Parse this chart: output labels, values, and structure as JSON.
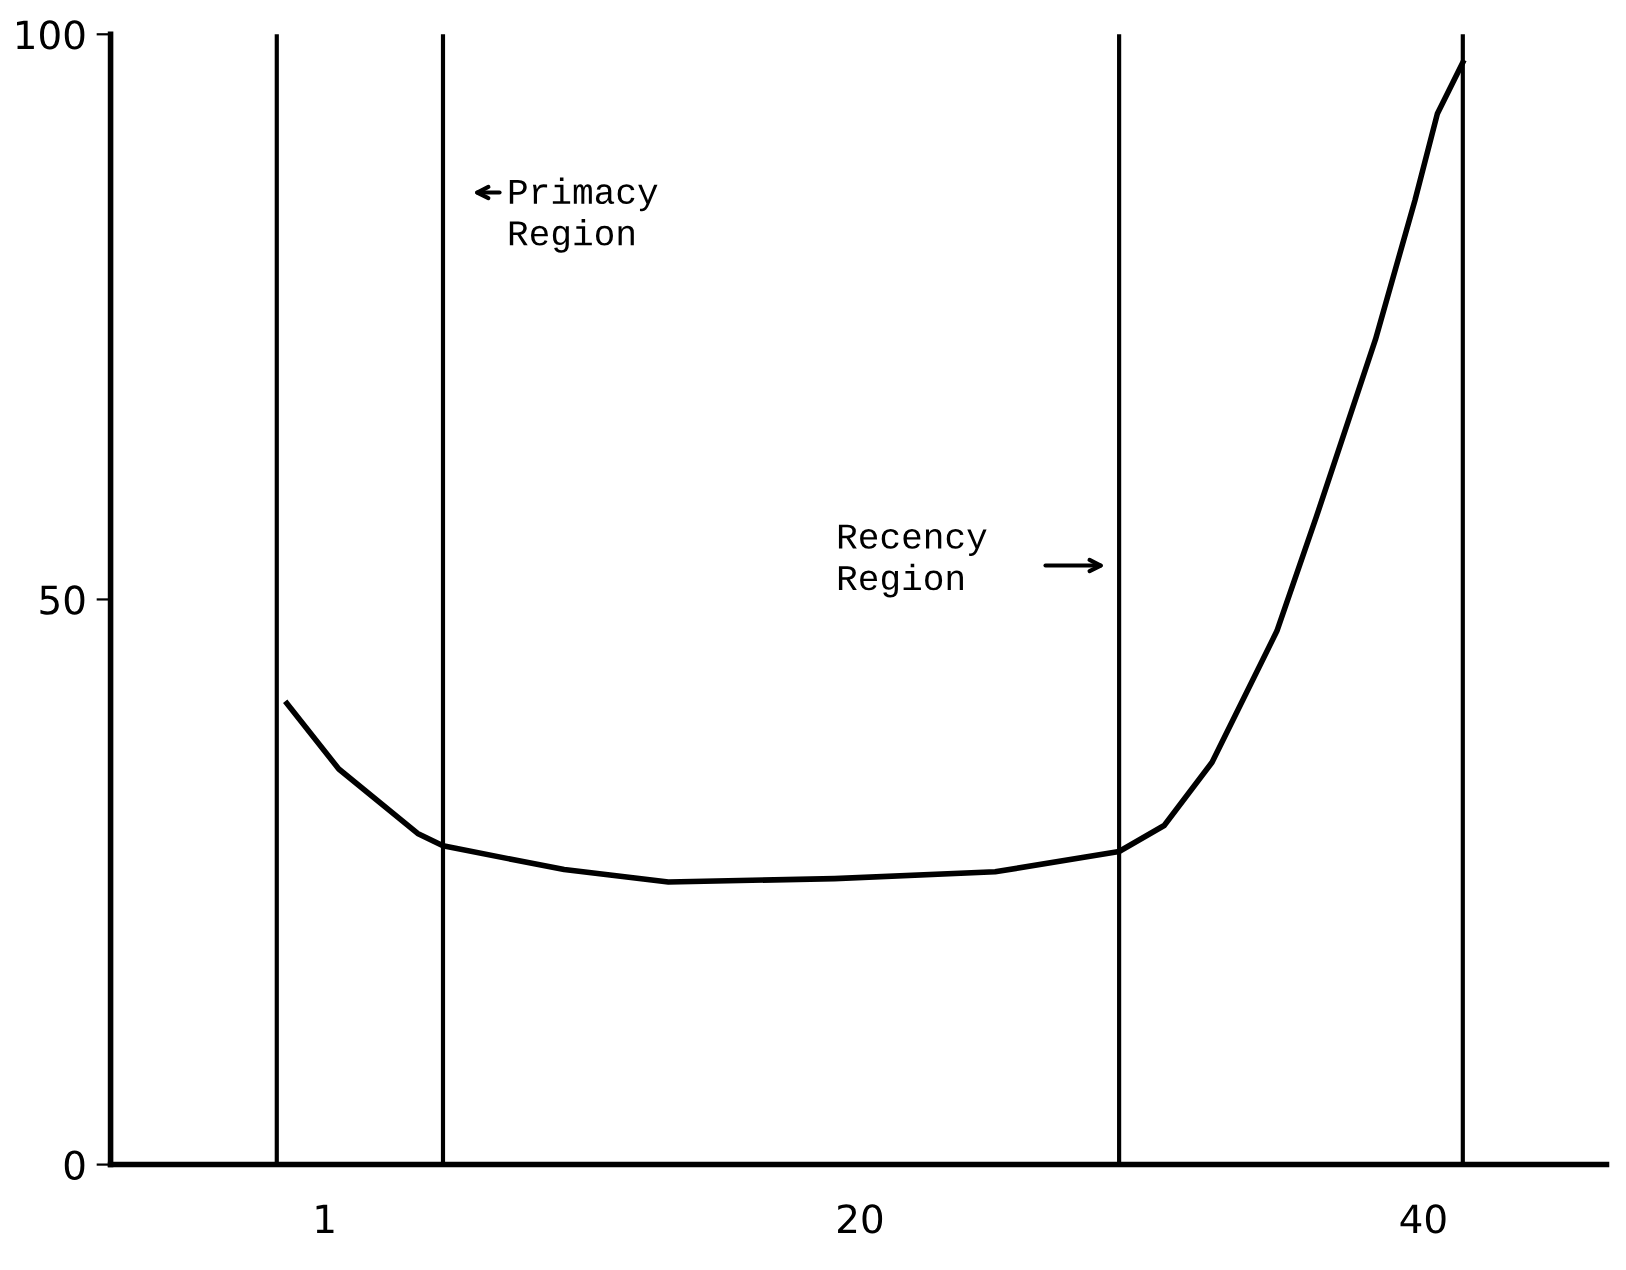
{
  "chart_data": {
    "type": "line",
    "x": [
      -0.34,
      1.5,
      4.3,
      5.2,
      9.5,
      13.2,
      19.1,
      24.8,
      29.2,
      30.8,
      32.5,
      34.8,
      36.2,
      38.3,
      39.7,
      40.5,
      41.4
    ],
    "series": [
      {
        "color": "#000000",
        "values": [
          40.8,
          35,
          29.3,
          28.2,
          26.1,
          25,
          25.3,
          25.9,
          27.7,
          30,
          35.6,
          47.2,
          57.3,
          73,
          85.3,
          93,
          97.5
        ]
      }
    ],
    "xlim": [
      -6.6,
      46.5
    ],
    "xticks": [
      1,
      20,
      40
    ],
    "ylim": [
      0,
      100
    ],
    "yticks": [
      0,
      50,
      100
    ],
    "ref_lines": [
      {
        "axis": "x",
        "value": -0.7
      },
      {
        "axis": "x",
        "value": 5.2
      },
      {
        "axis": "x",
        "value": 29.2
      },
      {
        "axis": "x",
        "value": 41.4
      }
    ],
    "annotations": [
      "Primacy\nRegion",
      "Recency\nRegion"
    ],
    "grid": false,
    "legend": false,
    "marker": "none",
    "line_style": "solid"
  }
}
